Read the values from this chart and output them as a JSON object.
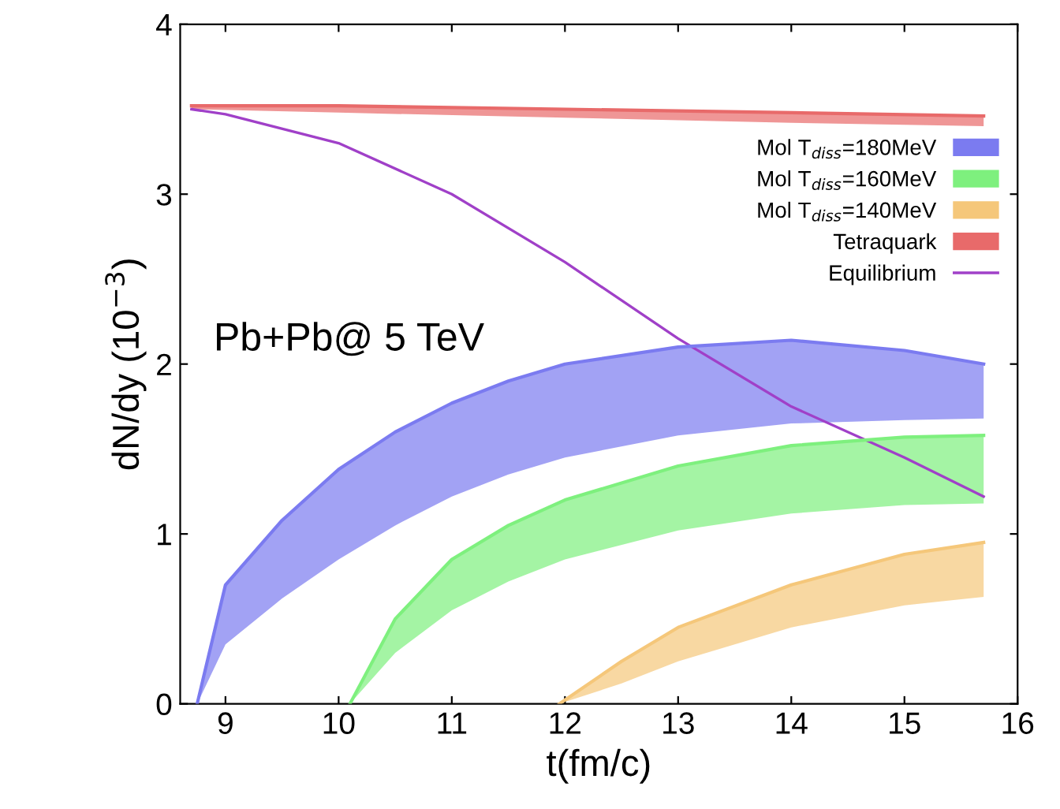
{
  "chart_data": {
    "type": "line",
    "xlabel": "t(fm/c)",
    "ylabel": "dN/dy (10$^{−3}$)",
    "xlim": [
      8.6,
      16
    ],
    "xticks": [
      9,
      10,
      11,
      12,
      13,
      14,
      15,
      16
    ],
    "ylim": [
      0,
      4
    ],
    "yticks": [
      0,
      1,
      2,
      3,
      4
    ],
    "legend": "top right",
    "grid": false,
    "annotations": [
      "Pb+Pb@ 5 TeV"
    ],
    "series": [
      {
        "name": "Mol T$_{diss}$=180MeV",
        "color": "#7b7bf0",
        "x": [
          8.75,
          9,
          9.5,
          10,
          10.5,
          11,
          11.5,
          12,
          13,
          14,
          15,
          15.7
        ],
        "values": [
          0,
          0.7,
          1.08,
          1.38,
          1.6,
          1.77,
          1.9,
          2.0,
          2.1,
          2.14,
          2.08,
          2.0
        ],
        "upper": [
          0,
          0.7,
          1.08,
          1.38,
          1.6,
          1.77,
          1.9,
          2.0,
          2.1,
          2.14,
          2.08,
          2.0
        ],
        "lower": [
          0,
          0.35,
          0.62,
          0.85,
          1.05,
          1.22,
          1.35,
          1.45,
          1.58,
          1.65,
          1.67,
          1.68
        ]
      },
      {
        "name": "Mol T$_{diss}$=160MeV",
        "color": "#7ef07e",
        "x": [
          10.1,
          10.5,
          11,
          11.5,
          12,
          13,
          14,
          15,
          15.7
        ],
        "values": [
          0,
          0.5,
          0.85,
          1.05,
          1.2,
          1.4,
          1.52,
          1.57,
          1.58
        ],
        "upper": [
          0,
          0.5,
          0.85,
          1.05,
          1.2,
          1.4,
          1.52,
          1.57,
          1.58
        ],
        "lower": [
          0,
          0.3,
          0.55,
          0.72,
          0.85,
          1.02,
          1.12,
          1.17,
          1.18
        ]
      },
      {
        "name": "Mol T$_{diss}$=140MeV",
        "color": "#f5c77a",
        "x": [
          11.95,
          12.5,
          13,
          14,
          15,
          15.7
        ],
        "values": [
          0,
          0.25,
          0.45,
          0.7,
          0.88,
          0.95
        ],
        "upper": [
          0,
          0.25,
          0.45,
          0.7,
          0.88,
          0.95
        ],
        "lower": [
          0,
          0.12,
          0.25,
          0.45,
          0.58,
          0.63
        ]
      },
      {
        "name": "Tetraquark",
        "color": "#e86a6a",
        "x": [
          8.7,
          10,
          12,
          14,
          15.7
        ],
        "values": [
          3.52,
          3.52,
          3.5,
          3.48,
          3.46
        ],
        "upper": [
          3.52,
          3.52,
          3.5,
          3.48,
          3.46
        ],
        "lower": [
          3.5,
          3.48,
          3.45,
          3.42,
          3.4
        ]
      },
      {
        "name": "Equilibrium",
        "color": "#a040c8",
        "x": [
          8.7,
          9,
          10,
          11,
          12,
          13,
          14,
          15,
          15.7
        ],
        "values": [
          3.5,
          3.47,
          3.3,
          3.0,
          2.6,
          2.15,
          1.75,
          1.45,
          1.22
        ]
      }
    ]
  }
}
